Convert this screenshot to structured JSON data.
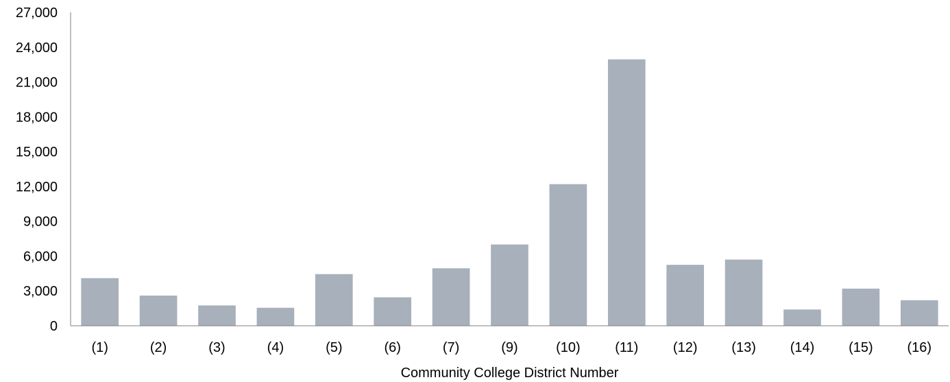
{
  "chart_data": {
    "type": "bar",
    "title": "",
    "xlabel": "Community College District Number",
    "ylabel": "",
    "categories": [
      "(1)",
      "(2)",
      "(3)",
      "(4)",
      "(5)",
      "(6)",
      "(7)",
      "(9)",
      "(10)",
      "(11)",
      "(12)",
      "(13)",
      "(14)",
      "(15)",
      "(16)"
    ],
    "values": [
      4100,
      2600,
      1750,
      1550,
      4450,
      2450,
      4950,
      7000,
      12200,
      22950,
      5250,
      5700,
      1400,
      3200,
      2200
    ],
    "ylim": [
      0,
      27000
    ],
    "yticks": [
      0,
      3000,
      6000,
      9000,
      12000,
      15000,
      18000,
      21000,
      24000,
      27000
    ],
    "ytick_labels": [
      "0",
      "3,000",
      "6,000",
      "9,000",
      "12,000",
      "15,000",
      "18,000",
      "21,000",
      "24,000",
      "27,000"
    ],
    "grid": false,
    "legend": "none",
    "bar_color": "#a7b0bb",
    "axis_color": "#7f7f7f"
  }
}
